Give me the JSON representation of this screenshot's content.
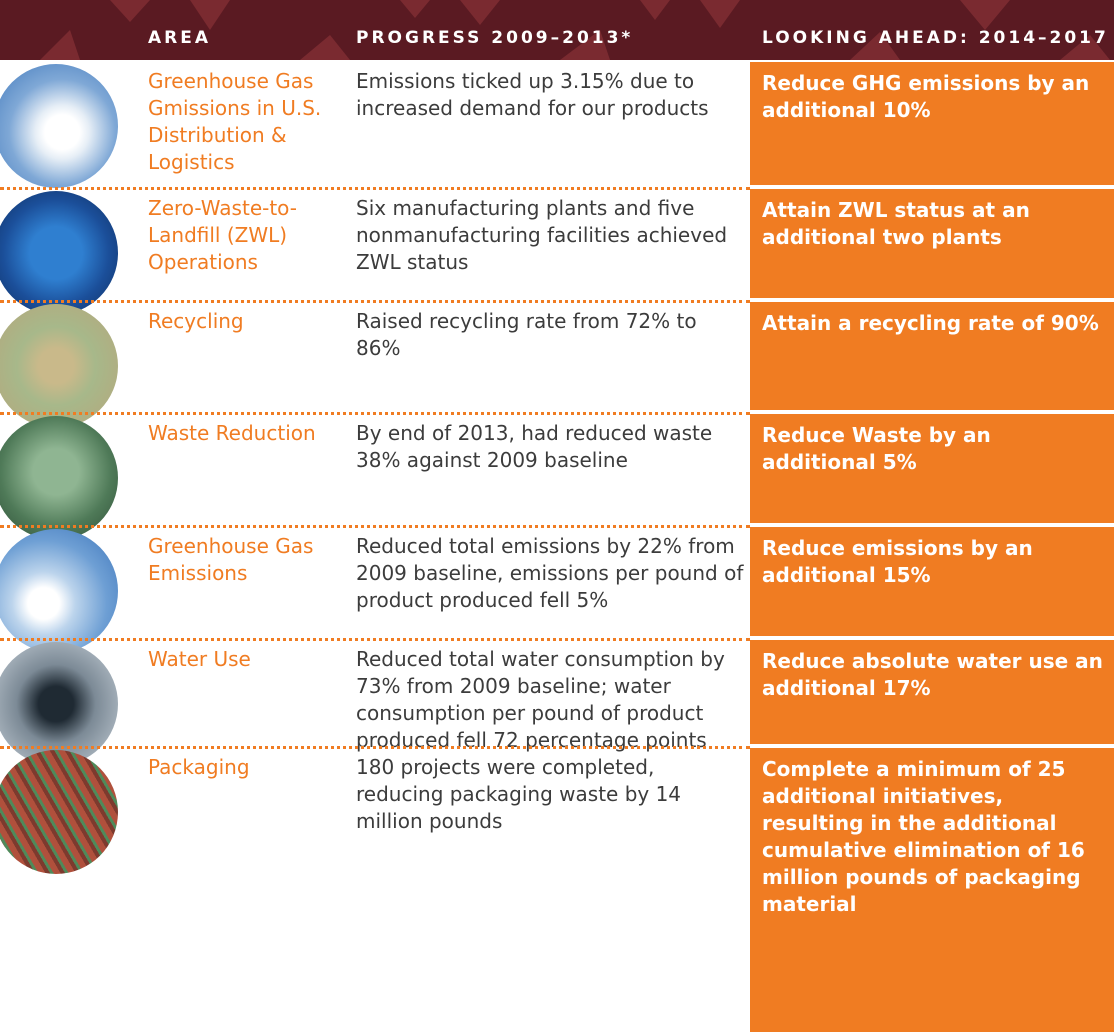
{
  "header": {
    "area": "AREA",
    "progress": "PROGRESS 2009–2013*",
    "ahead": "LOOKING AHEAD: 2014–2017"
  },
  "table": {
    "rows": [
      [
        "Greenhouse Gas Gmissions in U.S. Distribution & Logistics",
        "Emissions ticked up 3.15% due to increased demand for our products",
        "Reduce GHG emissions by an additional 10%"
      ],
      [
        "Zero-Waste-to-Landfill (ZWL) Operations",
        "Six manufacturing plants and five nonmanufacturing facilities achieved ZWL status",
        "Attain ZWL status at an additional two plants"
      ],
      [
        "Recycling",
        "Raised recycling rate from 72% to 86%",
        "Attain a recycling rate of 90%"
      ],
      [
        "Waste Reduction",
        "By end of 2013, had reduced waste 38% against 2009 baseline",
        "Reduce Waste by an additional 5%"
      ],
      [
        "Greenhouse Gas Emissions",
        "Reduced total emissions by 22% from 2009 baseline, emissions per pound of product produced fell 5%",
        "Reduce emissions by an additional 15%"
      ],
      [
        "Water Use",
        "Reduced total water consumption by 73% from 2009 baseline; water consumption per pound of product produced fell 72 percentage points",
        "Reduce absolute water use an additional 17%"
      ],
      [
        "Packaging",
        "180 projects were completed, reducing packaging waste by 14 million pounds",
        "Complete a minimum of 25 additional initiatives, resulting in the additional cumulative elimination of 16 million pounds of packaging material"
      ]
    ]
  }
}
